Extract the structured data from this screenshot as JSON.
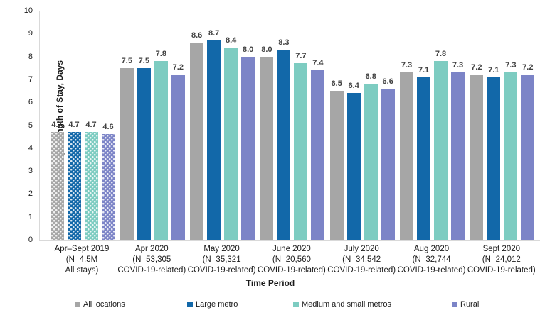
{
  "chart_data": {
    "type": "bar",
    "title": "",
    "xlabel": "Time Period",
    "ylabel": "Average Length of Stay, Days",
    "ylim": [
      0,
      10
    ],
    "yticks": [
      0,
      1,
      2,
      3,
      4,
      5,
      6,
      7,
      8,
      9,
      10
    ],
    "grid": false,
    "legend_position": "bottom",
    "value_label_decimals": 1,
    "categories": [
      {
        "lines": [
          "Apr–Sept 2019",
          "(N=4.5M",
          "All stays)"
        ],
        "patterned": true
      },
      {
        "lines": [
          "Apr 2020",
          "(N=53,305",
          "COVID-19-related)"
        ],
        "patterned": false
      },
      {
        "lines": [
          "May 2020",
          "(N=35,321",
          "COVID-19-related)"
        ],
        "patterned": false
      },
      {
        "lines": [
          "June 2020",
          "(N=20,560",
          "COVID-19-related)"
        ],
        "patterned": false
      },
      {
        "lines": [
          "July 2020",
          "(N=34,542",
          "COVID-19-related)"
        ],
        "patterned": false
      },
      {
        "lines": [
          "Aug 2020",
          "(N=32,744",
          "COVID-19-related)"
        ],
        "patterned": false
      },
      {
        "lines": [
          "Sept 2020",
          "(N=24,012",
          "COVID-19-related)"
        ],
        "patterned": false
      }
    ],
    "series": [
      {
        "name": "All locations",
        "color": "#a6a6a6",
        "values": [
          4.7,
          7.5,
          8.6,
          8.0,
          6.5,
          7.3,
          7.2
        ]
      },
      {
        "name": "Large metro",
        "color": "#1268a9",
        "values": [
          4.7,
          7.5,
          8.7,
          8.3,
          6.4,
          7.1,
          7.1
        ]
      },
      {
        "name": "Medium and small metros",
        "color": "#7dccc1",
        "values": [
          4.7,
          7.8,
          8.4,
          7.7,
          6.8,
          7.8,
          7.3
        ]
      },
      {
        "name": "Rural",
        "color": "#7c84c7",
        "values": [
          4.6,
          7.2,
          8.0,
          7.4,
          6.6,
          7.3,
          7.2
        ]
      }
    ]
  },
  "colors": {
    "axis_line": "#d9d9d9",
    "bar_label_text": "#404040",
    "tick_text": "#1a1a1a"
  }
}
